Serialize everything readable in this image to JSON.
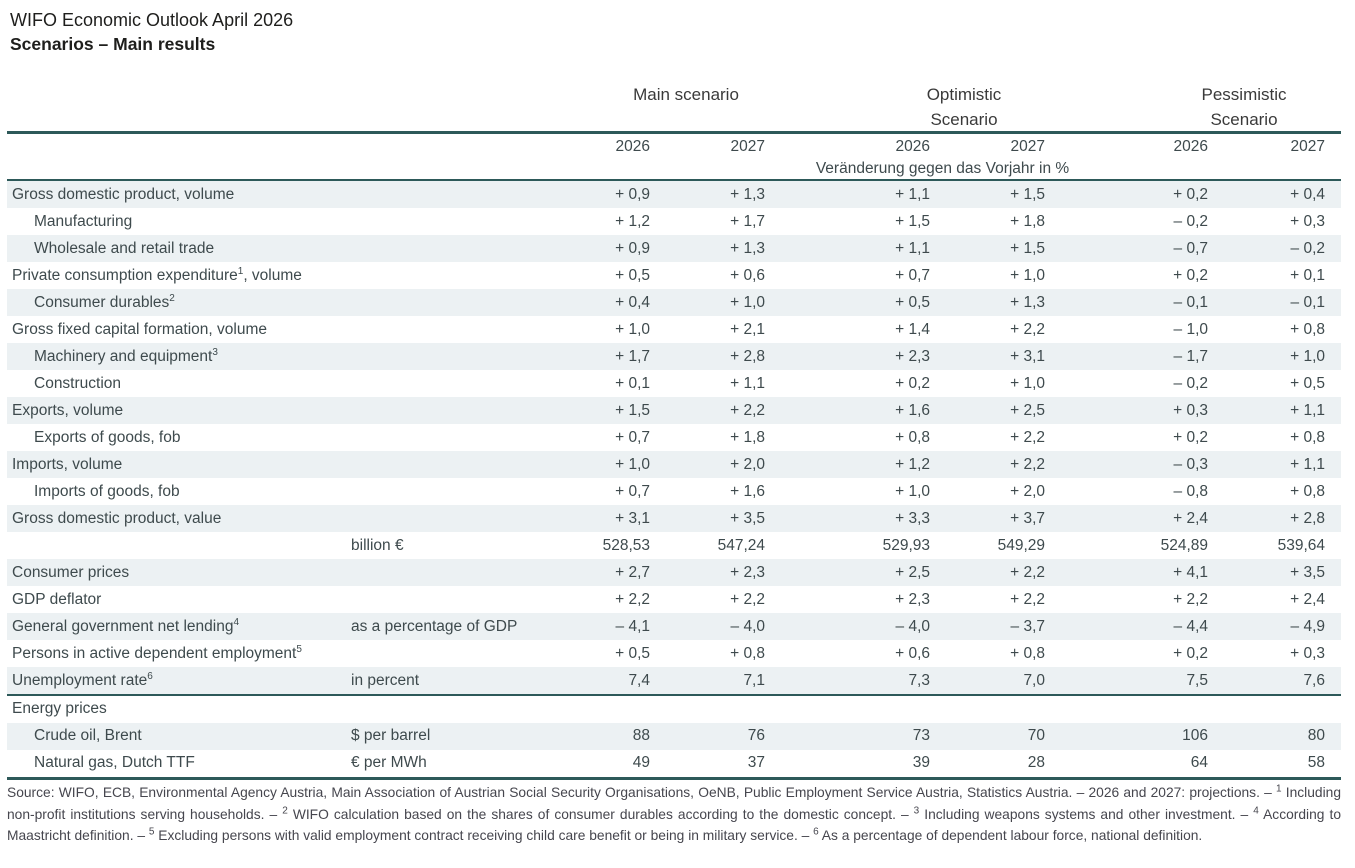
{
  "title": {
    "line1": "WIFO Economic Outlook April 2026",
    "line2": "Scenarios – Main results"
  },
  "table": {
    "scenario_headers": [
      {
        "lines": [
          "Main scenario"
        ]
      },
      {
        "lines": [
          "Optimistic",
          "Scenario"
        ]
      },
      {
        "lines": [
          "Pessimistic",
          "Scenario"
        ]
      }
    ],
    "year_headers": [
      "2026",
      "2027",
      "2026",
      "2027",
      "2026",
      "2027"
    ],
    "units_note": "Veränderung gegen das Vorjahr in %",
    "rows_main": [
      {
        "label": "Gross domestic product, volume",
        "indent": 0,
        "unit": "",
        "values": [
          "+ 0,9",
          "+ 1,3",
          "+ 1,1",
          "+ 1,5",
          "+ 0,2",
          "+ 0,4"
        ]
      },
      {
        "label": "Manufacturing",
        "indent": 1,
        "unit": "",
        "values": [
          "+ 1,2",
          "+ 1,7",
          "+ 1,5",
          "+ 1,8",
          "– 0,2",
          "+ 0,3"
        ]
      },
      {
        "label": "Wholesale and retail trade",
        "indent": 1,
        "unit": "",
        "values": [
          "+ 0,9",
          "+ 1,3",
          "+ 1,1",
          "+ 1,5",
          "– 0,7",
          "– 0,2"
        ]
      },
      {
        "label": "Private consumption expenditure",
        "sup": "1",
        "suffix": ", volume",
        "indent": 0,
        "unit": "",
        "values": [
          "+ 0,5",
          "+ 0,6",
          "+ 0,7",
          "+ 1,0",
          "+ 0,2",
          "+ 0,1"
        ]
      },
      {
        "label": "Consumer durables",
        "sup": "2",
        "indent": 1,
        "unit": "",
        "values": [
          "+ 0,4",
          "+ 1,0",
          "+ 0,5",
          "+ 1,3",
          "– 0,1",
          "– 0,1"
        ]
      },
      {
        "label": "Gross fixed capital formation, volume",
        "indent": 0,
        "unit": "",
        "values": [
          "+ 1,0",
          "+ 2,1",
          "+ 1,4",
          "+ 2,2",
          "– 1,0",
          "+ 0,8"
        ]
      },
      {
        "label": "Machinery and equipment",
        "sup": "3",
        "indent": 1,
        "unit": "",
        "values": [
          "+ 1,7",
          "+ 2,8",
          "+ 2,3",
          "+ 3,1",
          "– 1,7",
          "+ 1,0"
        ]
      },
      {
        "label": "Construction",
        "indent": 1,
        "unit": "",
        "values": [
          "+ 0,1",
          "+ 1,1",
          "+ 0,2",
          "+ 1,0",
          "– 0,2",
          "+ 0,5"
        ]
      },
      {
        "label": "Exports, volume",
        "indent": 0,
        "unit": "",
        "values": [
          "+ 1,5",
          "+ 2,2",
          "+ 1,6",
          "+ 2,5",
          "+ 0,3",
          "+ 1,1"
        ]
      },
      {
        "label": "Exports of goods, fob",
        "indent": 1,
        "unit": "",
        "values": [
          "+ 0,7",
          "+ 1,8",
          "+ 0,8",
          "+ 2,2",
          "+ 0,2",
          "+ 0,8"
        ]
      },
      {
        "label": "Imports, volume",
        "indent": 0,
        "unit": "",
        "values": [
          "+ 1,0",
          "+ 2,0",
          "+ 1,2",
          "+ 2,2",
          "– 0,3",
          "+ 1,1"
        ]
      },
      {
        "label": "Imports of goods, fob",
        "indent": 1,
        "unit": "",
        "values": [
          "+ 0,7",
          "+ 1,6",
          "+ 1,0",
          "+ 2,0",
          "– 0,8",
          "+ 0,8"
        ]
      },
      {
        "label": "Gross domestic product, value",
        "indent": 0,
        "unit": "",
        "values": [
          "+ 3,1",
          "+ 3,5",
          "+ 3,3",
          "+ 3,7",
          "+ 2,4",
          "+ 2,8"
        ]
      },
      {
        "label": "",
        "indent": 0,
        "unit": "billion €",
        "values": [
          "528,53",
          "547,24",
          "529,93",
          "549,29",
          "524,89",
          "539,64"
        ]
      },
      {
        "label": "Consumer prices",
        "indent": 0,
        "unit": "",
        "values": [
          "+ 2,7",
          "+ 2,3",
          "+ 2,5",
          "+ 2,2",
          "+ 4,1",
          "+ 3,5"
        ]
      },
      {
        "label": "GDP deflator",
        "indent": 0,
        "unit": "",
        "values": [
          "+ 2,2",
          "+ 2,2",
          "+ 2,3",
          "+ 2,2",
          "+ 2,2",
          "+ 2,4"
        ]
      },
      {
        "label": "General government net lending",
        "sup": "4",
        "indent": 0,
        "unit": "as a percentage of GDP",
        "values": [
          "– 4,1",
          "– 4,0",
          "– 4,0",
          "– 3,7",
          "– 4,4",
          "– 4,9"
        ]
      },
      {
        "label": "Persons in active dependent employment",
        "sup": "5",
        "indent": 0,
        "unit": "",
        "values": [
          "+ 0,5",
          "+ 0,8",
          "+ 0,6",
          "+ 0,8",
          "+ 0,2",
          "+ 0,3"
        ]
      },
      {
        "label": "Unemployment rate",
        "sup": "6",
        "indent": 0,
        "unit": "in percent",
        "values": [
          "7,4",
          "7,1",
          "7,3",
          "7,0",
          "7,5",
          "7,6"
        ]
      }
    ],
    "rows_energy": [
      {
        "label": "Energy prices",
        "indent": 0,
        "unit": "",
        "values": []
      },
      {
        "label": "Crude oil, Brent",
        "indent": 1,
        "unit": "$ per barrel",
        "values": [
          "88",
          "76",
          "73",
          "70",
          "106",
          "80"
        ]
      },
      {
        "label": "Natural gas, Dutch TTF",
        "indent": 1,
        "unit": "€ per MWh",
        "values": [
          "49",
          "37",
          "39",
          "28",
          "64",
          "58"
        ]
      }
    ]
  },
  "footnote_segments": [
    {
      "t": "Source: WIFO, ECB, Environmental Agency Austria, Main Association of Austrian Social Security Organisations, OeNB, Public Employment Service Austria, Statistics Austria. – 2026 and 2027: projections. – "
    },
    {
      "sup": "1"
    },
    {
      "t": " Including non-profit institutions serving households. – "
    },
    {
      "sup": "2"
    },
    {
      "t": " WIFO calculation based on the shares of consumer durables according to the domestic concept. – "
    },
    {
      "sup": "3"
    },
    {
      "t": " Including weapons systems and other investment. – "
    },
    {
      "sup": "4"
    },
    {
      "t": " According to Maastricht definition. – "
    },
    {
      "sup": "5"
    },
    {
      "t": " Excluding persons with valid employment contract receiving child care benefit or being in military service. – "
    },
    {
      "sup": "6"
    },
    {
      "t": " As a percentage of dependent labour force, national definition."
    }
  ],
  "colors": {
    "rule_teal": "#2d5959",
    "row_shade": "#ecf1f3",
    "text": "#3e4a4d"
  }
}
